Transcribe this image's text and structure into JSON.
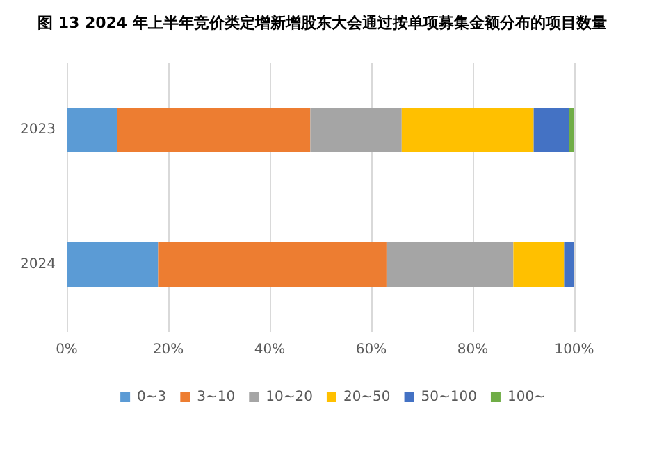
{
  "chart_data": {
    "type": "bar",
    "orientation": "horizontal",
    "stacked": true,
    "title": "图 13 2024 年上半年竞价类定增新增股东大会通过按单项募集金额分布的项目数量",
    "categories": [
      "2023",
      "2024"
    ],
    "series": [
      {
        "name": "0~3",
        "color": "#5b9bd5",
        "values": [
          10,
          18
        ]
      },
      {
        "name": "3~10",
        "color": "#ed7d31",
        "values": [
          38,
          45
        ]
      },
      {
        "name": "10~20",
        "color": "#a5a5a5",
        "values": [
          18,
          25
        ]
      },
      {
        "name": "20~50",
        "color": "#ffc000",
        "values": [
          26,
          10
        ]
      },
      {
        "name": "50~100",
        "color": "#4472c4",
        "values": [
          7,
          2
        ]
      },
      {
        "name": "100~",
        "color": "#70ad47",
        "values": [
          1,
          0
        ]
      }
    ],
    "xlim": [
      0,
      100
    ],
    "xticks": [
      {
        "value": 0,
        "label": "0%"
      },
      {
        "value": 20,
        "label": "20%"
      },
      {
        "value": 40,
        "label": "40%"
      },
      {
        "value": 60,
        "label": "60%"
      },
      {
        "value": 80,
        "label": "80%"
      },
      {
        "value": 100,
        "label": "100%"
      }
    ],
    "grid": "x",
    "legend": "bottom"
  }
}
